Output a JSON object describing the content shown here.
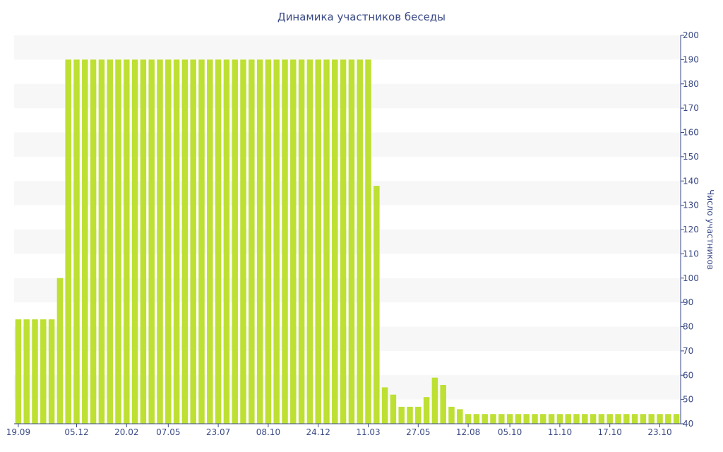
{
  "chart_data": {
    "type": "bar",
    "title": "Динамика участников беседы",
    "ylabel": "Число участников",
    "xlabel": "",
    "ylim": [
      40,
      200
    ],
    "yticks": [
      40,
      50,
      60,
      70,
      80,
      90,
      100,
      110,
      120,
      130,
      140,
      150,
      160,
      170,
      180,
      190,
      200
    ],
    "y_axis_position": "right",
    "grid": "alternating horizontal bands",
    "legend": "none",
    "bar_color": "#bde032",
    "band_color": "#f7f7f7",
    "text_color": "#3a4a86",
    "x_tick_labels": [
      {
        "label": "19.09",
        "bar_index": 0
      },
      {
        "label": "05.12",
        "bar_index": 7
      },
      {
        "label": "20.02",
        "bar_index": 13
      },
      {
        "label": "07.05",
        "bar_index": 18
      },
      {
        "label": "23.07",
        "bar_index": 24
      },
      {
        "label": "08.10",
        "bar_index": 30
      },
      {
        "label": "24.12",
        "bar_index": 36
      },
      {
        "label": "11.03",
        "bar_index": 42
      },
      {
        "label": "27.05",
        "bar_index": 48
      },
      {
        "label": "12.08",
        "bar_index": 54
      },
      {
        "label": "05.10",
        "bar_index": 59
      },
      {
        "label": "11.10",
        "bar_index": 65
      },
      {
        "label": "17.10",
        "bar_index": 71
      },
      {
        "label": "23.10",
        "bar_index": 77
      }
    ],
    "values": [
      83,
      83,
      83,
      83,
      83,
      100,
      190,
      190,
      190,
      190,
      190,
      190,
      190,
      190,
      190,
      190,
      190,
      190,
      190,
      190,
      190,
      190,
      190,
      190,
      190,
      190,
      190,
      190,
      190,
      190,
      190,
      190,
      190,
      190,
      190,
      190,
      190,
      190,
      190,
      190,
      190,
      190,
      190,
      138,
      55,
      52,
      47,
      47,
      47,
      51,
      59,
      56,
      47,
      46,
      44,
      44,
      44,
      44,
      44,
      44,
      44,
      44,
      44,
      44,
      44,
      44,
      44,
      44,
      44,
      44,
      44,
      44,
      44,
      44,
      44,
      44,
      44,
      44,
      44,
      44
    ]
  }
}
